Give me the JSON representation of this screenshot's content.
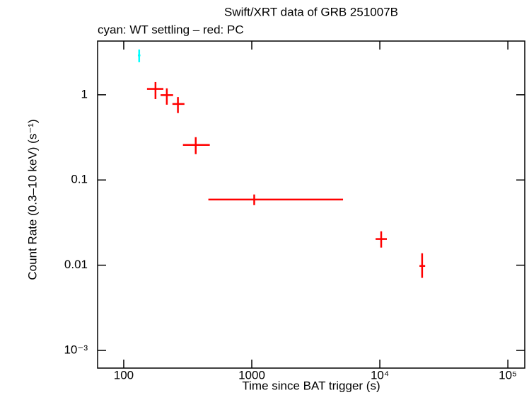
{
  "chart_data": {
    "type": "scatter",
    "title": "Swift/XRT data of GRB 251007B",
    "subtitle": "cyan: WT settling – red: PC",
    "x_label": "Time since BAT trigger (s)",
    "y_label": "Count Rate (0.3–10 keV) (s⁻¹)",
    "x_log": true,
    "y_log": true,
    "xlim": [
      62.5,
      135500
    ],
    "ylim": [
      0.00062,
      4.27
    ],
    "xticks": [
      100,
      1000,
      {
        "value": 10000,
        "label": "10⁴"
      },
      {
        "value": 100000,
        "label": "10⁵"
      }
    ],
    "yticks": [
      1,
      0.1,
      0.01,
      {
        "value": 0.001,
        "label": "10⁻³"
      }
    ],
    "series": [
      {
        "color": "#00ffff",
        "x": [
          132
        ],
        "x_low": [
          129
        ],
        "x_high": [
          135
        ],
        "values": [
          2.9
        ],
        "y_low": [
          2.41
        ],
        "y_high": [
          3.4
        ]
      },
      {
        "color": "#ff0000",
        "x": [
          177,
          217,
          265,
          365,
          1045,
          10250,
          21400
        ],
        "x_low": [
          152,
          194,
          240,
          290,
          458,
          9270,
          20400
        ],
        "x_high": [
          204,
          243,
          298,
          470,
          5160,
          11350,
          22600
        ],
        "values": [
          1.17,
          0.99,
          0.78,
          0.258,
          0.059,
          0.0203,
          0.0098
        ],
        "y_low": [
          0.89,
          0.765,
          0.61,
          0.201,
          0.0507,
          0.0161,
          0.0071
        ],
        "y_high": [
          1.41,
          1.19,
          0.94,
          0.318,
          0.0676,
          0.025,
          0.0138
        ]
      }
    ]
  }
}
